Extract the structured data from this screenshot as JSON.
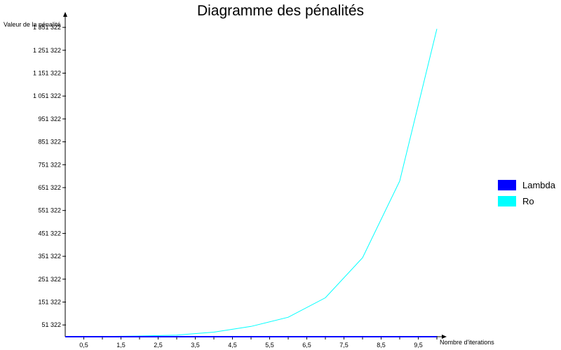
{
  "chart_data": {
    "type": "line",
    "title": "Diagramme des pénalités",
    "xlabel": "Nombre d'iterations",
    "ylabel": "Valeur de la pénalité",
    "xlim": [
      0,
      10
    ],
    "ylim": [
      0,
      1370000
    ],
    "x_ticks": [
      0.5,
      1.5,
      2.5,
      3.5,
      4.5,
      5.5,
      6.5,
      7.5,
      8.5,
      9.5
    ],
    "x_tick_labels": [
      "0,5",
      "1,5",
      "2,5",
      "3,5",
      "4,5",
      "5,5",
      "6,5",
      "7,5",
      "8,5",
      "9,5"
    ],
    "y_ticks": [
      51322,
      151322,
      251322,
      351322,
      451322,
      551322,
      651322,
      751322,
      851322,
      951322,
      1051322,
      1151322,
      1251322,
      1351322
    ],
    "y_tick_labels": [
      "51 322",
      "151 322",
      "251 322",
      "351 322",
      "451 322",
      "551 322",
      "651 322",
      "751 322",
      "851 322",
      "951 322",
      "1 051 322",
      "1 151 322",
      "1 251 322",
      "1 351 322"
    ],
    "x": [
      0,
      1,
      2,
      3,
      4,
      5,
      6,
      7,
      8,
      9,
      10
    ],
    "series": [
      {
        "name": "Lambda",
        "color": "#0000ff",
        "values": [
          0,
          0,
          0,
          0,
          0,
          0,
          0,
          0,
          0,
          0,
          0
        ]
      },
      {
        "name": "Ro",
        "color": "#00ffff",
        "values": [
          0,
          1000,
          3000,
          7000,
          20000,
          45000,
          85000,
          170000,
          345000,
          680000,
          1345000
        ]
      }
    ],
    "grid": false,
    "legend_position": "right"
  }
}
